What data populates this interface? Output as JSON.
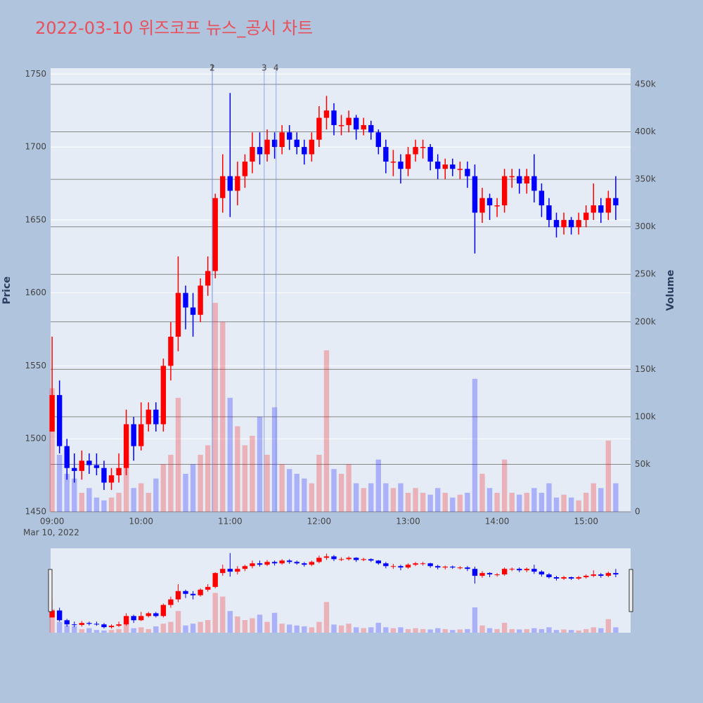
{
  "chart_data": {
    "type": "candlestick",
    "title": "2022-03-10 위즈코프 뉴스_공시 차트",
    "y_title": "Price",
    "y2_title": "Volume",
    "date_label": "Mar 10, 2022",
    "x": [
      "09:00",
      "09:05",
      "09:10",
      "09:15",
      "09:20",
      "09:25",
      "09:30",
      "09:35",
      "09:40",
      "09:45",
      "09:50",
      "09:55",
      "10:00",
      "10:05",
      "10:10",
      "10:15",
      "10:20",
      "10:25",
      "10:30",
      "10:35",
      "10:40",
      "10:45",
      "10:50",
      "10:55",
      "11:00",
      "11:05",
      "11:10",
      "11:15",
      "11:20",
      "11:25",
      "11:30",
      "11:35",
      "11:40",
      "11:45",
      "11:50",
      "11:55",
      "12:00",
      "12:05",
      "12:10",
      "12:15",
      "12:20",
      "12:25",
      "12:30",
      "12:35",
      "12:40",
      "12:45",
      "12:50",
      "12:55",
      "13:00",
      "13:05",
      "13:10",
      "13:15",
      "13:20",
      "13:25",
      "13:30",
      "13:35",
      "13:40",
      "13:45",
      "13:50",
      "13:55",
      "14:00",
      "14:05",
      "14:10",
      "14:15",
      "14:20",
      "14:25",
      "14:30",
      "14:35",
      "14:40",
      "14:45",
      "14:50",
      "14:55",
      "15:00",
      "15:05",
      "15:10",
      "15:15",
      "15:20"
    ],
    "open": [
      1505,
      1530,
      1495,
      1480,
      1478,
      1485,
      1482,
      1480,
      1470,
      1475,
      1480,
      1510,
      1495,
      1510,
      1520,
      1510,
      1550,
      1570,
      1600,
      1590,
      1585,
      1605,
      1615,
      1665,
      1680,
      1670,
      1680,
      1690,
      1700,
      1695,
      1705,
      1700,
      1710,
      1705,
      1700,
      1695,
      1705,
      1720,
      1725,
      1715,
      1715,
      1720,
      1712,
      1715,
      1710,
      1700,
      1690,
      1690,
      1685,
      1695,
      1700,
      1700,
      1690,
      1685,
      1688,
      1685,
      1685,
      1680,
      1655,
      1665,
      1660,
      1660,
      1680,
      1680,
      1675,
      1680,
      1670,
      1660,
      1650,
      1645,
      1650,
      1645,
      1650,
      1655,
      1660,
      1655,
      1665
    ],
    "high": [
      1570,
      1540,
      1500,
      1490,
      1492,
      1490,
      1490,
      1485,
      1480,
      1490,
      1520,
      1515,
      1525,
      1525,
      1525,
      1555,
      1580,
      1625,
      1605,
      1600,
      1610,
      1625,
      1668,
      1695,
      1737,
      1690,
      1695,
      1710,
      1710,
      1712,
      1710,
      1715,
      1715,
      1710,
      1705,
      1710,
      1728,
      1735,
      1730,
      1722,
      1725,
      1722,
      1720,
      1718,
      1712,
      1705,
      1698,
      1695,
      1700,
      1705,
      1705,
      1702,
      1695,
      1692,
      1692,
      1690,
      1690,
      1688,
      1672,
      1668,
      1665,
      1685,
      1685,
      1685,
      1685,
      1695,
      1675,
      1665,
      1655,
      1655,
      1652,
      1655,
      1660,
      1675,
      1665,
      1670,
      1680
    ],
    "low": [
      1505,
      1490,
      1472,
      1470,
      1472,
      1476,
      1475,
      1465,
      1465,
      1470,
      1475,
      1485,
      1492,
      1505,
      1505,
      1505,
      1540,
      1560,
      1575,
      1570,
      1580,
      1598,
      1610,
      1655,
      1652,
      1660,
      1672,
      1682,
      1688,
      1690,
      1692,
      1695,
      1698,
      1695,
      1688,
      1690,
      1700,
      1712,
      1708,
      1708,
      1710,
      1705,
      1708,
      1705,
      1695,
      1682,
      1680,
      1675,
      1680,
      1690,
      1692,
      1684,
      1678,
      1678,
      1680,
      1678,
      1672,
      1627,
      1648,
      1650,
      1652,
      1655,
      1672,
      1668,
      1668,
      1662,
      1652,
      1645,
      1638,
      1640,
      1640,
      1640,
      1645,
      1650,
      1648,
      1650,
      1650
    ],
    "close": [
      1530,
      1495,
      1480,
      1478,
      1485,
      1482,
      1480,
      1470,
      1475,
      1480,
      1510,
      1495,
      1510,
      1520,
      1510,
      1550,
      1570,
      1600,
      1590,
      1585,
      1605,
      1615,
      1665,
      1680,
      1670,
      1680,
      1690,
      1700,
      1695,
      1705,
      1700,
      1710,
      1705,
      1700,
      1695,
      1705,
      1720,
      1725,
      1715,
      1715,
      1720,
      1712,
      1715,
      1710,
      1700,
      1690,
      1690,
      1685,
      1695,
      1700,
      1700,
      1690,
      1685,
      1688,
      1685,
      1685,
      1680,
      1655,
      1665,
      1660,
      1660,
      1680,
      1680,
      1675,
      1680,
      1670,
      1660,
      1650,
      1645,
      1650,
      1645,
      1650,
      1655,
      1660,
      1655,
      1665,
      1660
    ],
    "volume": [
      130000,
      60000,
      40000,
      35000,
      20000,
      25000,
      15000,
      12000,
      15000,
      20000,
      60000,
      25000,
      30000,
      20000,
      35000,
      50000,
      60000,
      120000,
      40000,
      50000,
      60000,
      70000,
      220000,
      200000,
      120000,
      90000,
      70000,
      80000,
      100000,
      60000,
      110000,
      50000,
      45000,
      40000,
      35000,
      30000,
      60000,
      170000,
      45000,
      40000,
      50000,
      30000,
      25000,
      30000,
      55000,
      30000,
      25000,
      30000,
      20000,
      25000,
      20000,
      18000,
      25000,
      20000,
      15000,
      18000,
      20000,
      140000,
      40000,
      25000,
      20000,
      55000,
      20000,
      18000,
      20000,
      25000,
      20000,
      30000,
      15000,
      18000,
      15000,
      12000,
      20000,
      30000,
      25000,
      75000,
      30000
    ],
    "up_color": "#ff0000",
    "down_color": "#0000ff",
    "xlim": [
      "08:59",
      "15:30"
    ],
    "xticks": [
      "09:00",
      "10:00",
      "11:00",
      "12:00",
      "13:00",
      "14:00",
      "15:00"
    ],
    "ylim": [
      1450,
      1754
    ],
    "yticks": [
      1450,
      1500,
      1550,
      1600,
      1650,
      1700,
      1750
    ],
    "y2lim": [
      0,
      467000
    ],
    "y2ticks": [
      0,
      {
        "value": 50000,
        "label": "50k"
      },
      {
        "value": 100000,
        "label": "100k"
      },
      {
        "value": 150000,
        "label": "150k"
      },
      {
        "value": 200000,
        "label": "200k"
      },
      {
        "value": 250000,
        "label": "250k"
      },
      {
        "value": 300000,
        "label": "300k"
      },
      {
        "value": 350000,
        "label": "350k"
      },
      {
        "value": 400000,
        "label": "400k"
      },
      {
        "value": 450000,
        "label": "450k"
      }
    ],
    "annotations": [
      {
        "x": "10:48",
        "label": "1"
      },
      {
        "x": "10:48",
        "label": "2"
      },
      {
        "x": "11:23",
        "label": "3"
      },
      {
        "x": "11:31",
        "label": "4"
      }
    ],
    "grid": true
  }
}
